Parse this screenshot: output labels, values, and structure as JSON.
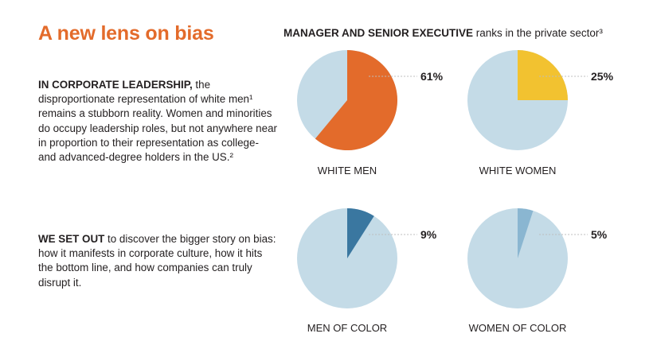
{
  "page": {
    "title": "A new lens on bias",
    "para1_lead": "IN CORPORATE LEADERSHIP,",
    "para1_text": " the disproportionate representation of white men¹ remains a stubborn reality. Women and minorities do occupy leadership roles, but not anywhere near in proportion to their representation as college- and advanced-degree holders in the US.²",
    "para2_lead": "WE SET OUT",
    "para2_text": " to discover the bigger story on bias: how it manifests in corporate culture, how it hits the bottom line, and how companies can truly disrupt it.",
    "chart_title_bold": "MANAGER AND SENIOR EXECUTIVE",
    "chart_title_rest": " ranks in the private sector³"
  },
  "colors": {
    "title": "#e36b2b",
    "pie_background": "#c4dbe7",
    "white_men": "#e36b2b",
    "white_women": "#f2c230",
    "men_of_color": "#3a77a0",
    "women_of_color": "#8ab6d1",
    "leader_line": "#bcbcbc"
  },
  "chart_data": [
    {
      "type": "pie",
      "label": "WHITE MEN",
      "value": 61,
      "value_label": "61%",
      "color": "#e36b2b"
    },
    {
      "type": "pie",
      "label": "WHITE WOMEN",
      "value": 25,
      "value_label": "25%",
      "color": "#f2c230"
    },
    {
      "type": "pie",
      "label": "MEN OF COLOR",
      "value": 9,
      "value_label": "9%",
      "color": "#3a77a0"
    },
    {
      "type": "pie",
      "label": "WOMEN OF COLOR",
      "value": 5,
      "value_label": "5%",
      "color": "#8ab6d1"
    }
  ]
}
